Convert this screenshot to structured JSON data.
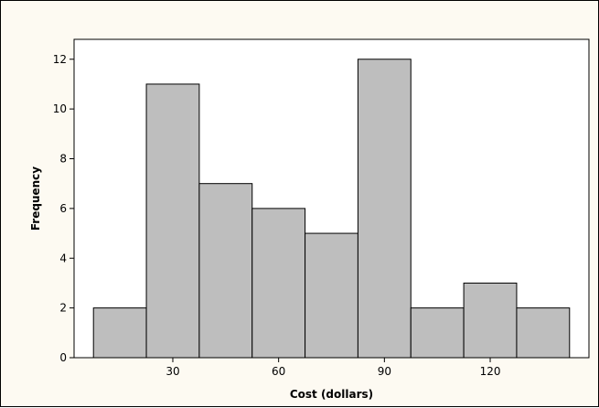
{
  "chart_data": {
    "type": "bar",
    "title": "",
    "xlabel": "Cost (dollars)",
    "ylabel": "Frequency",
    "bin_edges": [
      7.5,
      22.5,
      37.5,
      52.5,
      67.5,
      82.5,
      97.5,
      112.5,
      127.5,
      142.5
    ],
    "values": [
      2,
      11,
      7,
      6,
      5,
      12,
      2,
      3,
      2
    ],
    "xticks": [
      30,
      60,
      90,
      120
    ],
    "yticks": [
      0,
      2,
      4,
      6,
      8,
      10,
      12
    ],
    "xlim": [
      2,
      148
    ],
    "ylim": [
      0,
      12.8
    ],
    "grid": false,
    "bar_color": "#bebebe",
    "bar_edge_color": "#000000",
    "background_color": "#fdfaf2",
    "plot_background_color": "#ffffff"
  }
}
